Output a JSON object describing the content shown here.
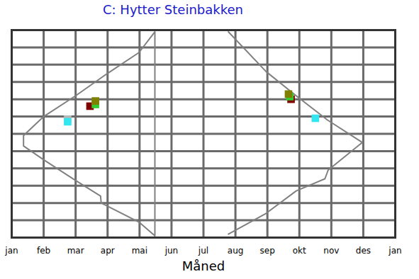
{
  "chart_data": {
    "type": "line",
    "title": "C: Hytter Steinbakken",
    "x_label": "Måned",
    "x": [
      4.48,
      3.98,
      3.0,
      2.0,
      1.0,
      0.37,
      0.37,
      1.0,
      2.0,
      2.78,
      2.8,
      3.98,
      4.48,
      4.48,
      5.6,
      6.78,
      7.96,
      8.9,
      9.88,
      10.97,
      9.9,
      9.8,
      8.9,
      7.96,
      6.78
    ],
    "series": [
      {
        "type": "line",
        "color": "#808080",
        "values": [
          11.9,
          10.7,
          9.5,
          8.2,
          7.0,
          5.9,
          5.3,
          4.5,
          3.3,
          2.4,
          2.0,
          0.9,
          0.1,
          11.9,
          null,
          11.9,
          9.6,
          8.2,
          6.8,
          5.5,
          3.9,
          3.4,
          2.7,
          1.4,
          0.2
        ]
      },
      {
        "type": "scatter",
        "marker": "square",
        "x": [
          1.75,
          1.75,
          2.45,
          2.62,
          2.62,
          8.74,
          8.7,
          8.66,
          9.5
        ],
        "values": [
          6.85,
          6.7,
          7.6,
          7.7,
          7.9,
          8.0,
          8.15,
          8.3,
          6.9
        ],
        "colors": [
          "#b8b8b8",
          "#33e6f0",
          "#800000",
          "#33cc33",
          "#808000",
          "#800000",
          "#33cc33",
          "#808000",
          "#33e6f0"
        ]
      }
    ],
    "xlim": [
      0,
      12
    ],
    "xticks": [
      {
        "value": 0,
        "label": "jan"
      },
      {
        "value": 1,
        "label": "feb"
      },
      {
        "value": 2,
        "label": "mar"
      },
      {
        "value": 3,
        "label": "apr"
      },
      {
        "value": 4,
        "label": "mai"
      },
      {
        "value": 5,
        "label": "jun"
      },
      {
        "value": 6,
        "label": "jul"
      },
      {
        "value": 7,
        "label": "aug"
      },
      {
        "value": 8,
        "label": "sep"
      },
      {
        "value": 9,
        "label": "okt"
      },
      {
        "value": 10,
        "label": "nov"
      },
      {
        "value": 11,
        "label": "des"
      },
      {
        "value": 12,
        "label": "jan"
      }
    ],
    "ylim": [
      0,
      12
    ],
    "yticks": [
      0,
      1,
      2,
      3,
      4,
      5,
      6,
      7,
      8,
      9,
      10,
      11,
      12
    ],
    "grid": true,
    "tick_labels": "x"
  }
}
